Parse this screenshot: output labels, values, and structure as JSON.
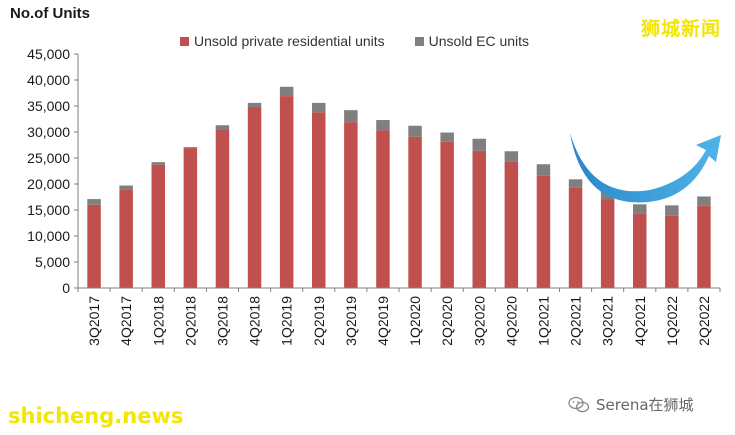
{
  "chart_data": {
    "type": "bar",
    "stacked": true,
    "ylabel": "No.of Units",
    "ylim": [
      0,
      45000
    ],
    "yticks": [
      "0",
      "5,000",
      "10,000",
      "15,000",
      "20,000",
      "25,000",
      "30,000",
      "35,000",
      "40,000",
      "45,000"
    ],
    "ytick_values": [
      0,
      5000,
      10000,
      15000,
      20000,
      25000,
      30000,
      35000,
      40000,
      45000
    ],
    "categories": [
      "3Q2017",
      "4Q2017",
      "1Q2018",
      "2Q2018",
      "3Q2018",
      "4Q2018",
      "1Q2019",
      "2Q2019",
      "3Q2019",
      "4Q2019",
      "1Q2020",
      "2Q2020",
      "3Q2020",
      "4Q2020",
      "1Q2021",
      "2Q2021",
      "3Q2021",
      "4Q2021",
      "1Q2022",
      "2Q2022"
    ],
    "series": [
      {
        "name": "Unsold private residential units",
        "color": "#c0504d",
        "values": [
          16000,
          19000,
          23700,
          26900,
          30500,
          34800,
          36900,
          33800,
          31900,
          30300,
          29100,
          28100,
          26400,
          24300,
          21600,
          19300,
          17100,
          14300,
          13900,
          15800
        ]
      },
      {
        "name": "Unsold EC units",
        "color": "#7f7f7f",
        "values": [
          1100,
          700,
          500,
          200,
          800,
          800,
          1800,
          1800,
          2300,
          2000,
          2100,
          1800,
          2300,
          2000,
          2200,
          1600,
          1600,
          1800,
          2000,
          1800
        ]
      }
    ],
    "legend": "top"
  },
  "watermarks": {
    "top_right": "狮城新闻",
    "bottom_left": "shicheng.news",
    "wechat_account": "Serena在狮城"
  },
  "arrow": {
    "color": "#2f9fd8",
    "meaning": "U-turn upward arrow indicating rebound"
  }
}
